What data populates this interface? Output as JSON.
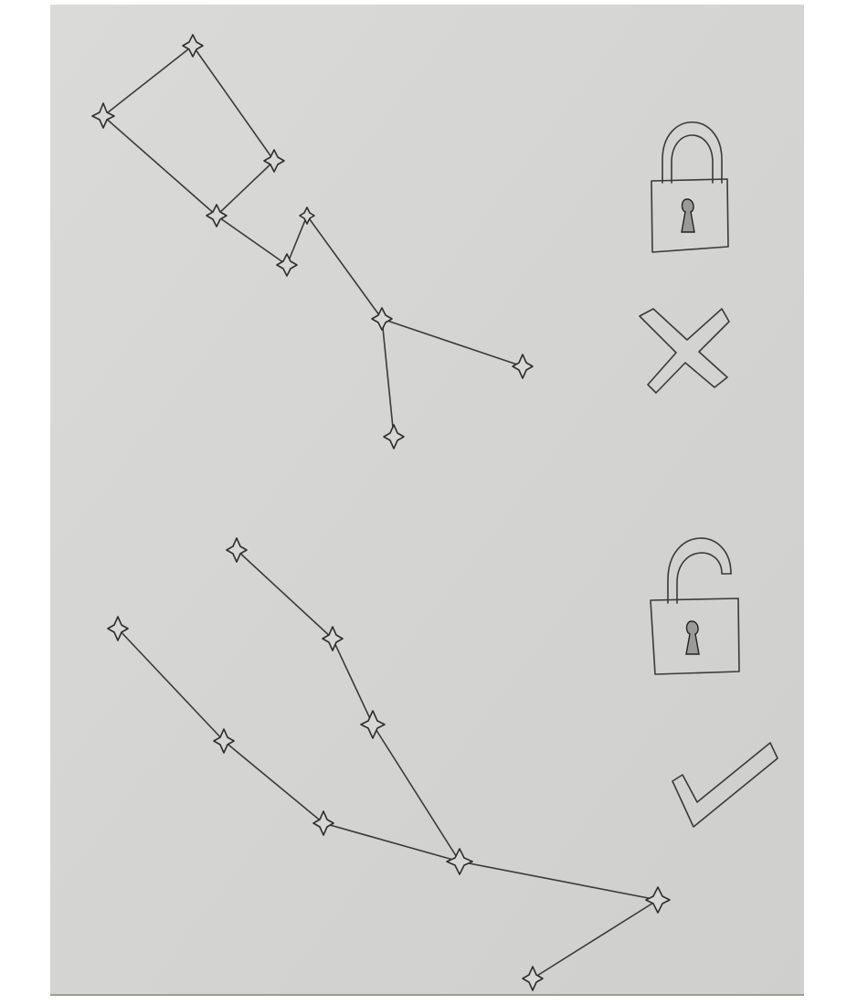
{
  "page": {
    "background": "#ffffff",
    "paper_color": "#d6d6d4",
    "ink_color": "#3a3a3a"
  },
  "panels": [
    {
      "name": "locked-pattern",
      "status_icons": [
        "locked-padlock-icon",
        "cross-icon"
      ]
    },
    {
      "name": "unlocked-pattern",
      "status_icons": [
        "unlocked-padlock-icon",
        "checkmark-icon"
      ]
    }
  ]
}
